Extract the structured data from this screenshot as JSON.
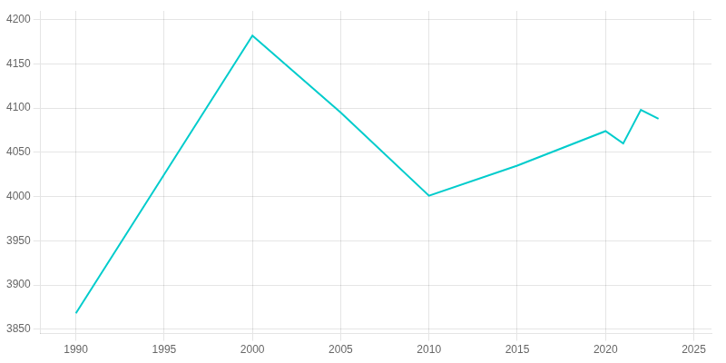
{
  "chart_data": {
    "type": "line",
    "x": [
      1990,
      2000,
      2005,
      2010,
      2015,
      2020,
      2021,
      2022,
      2023
    ],
    "values": [
      3868,
      4182,
      4095,
      4001,
      4035,
      4074,
      4060,
      4098,
      4088
    ],
    "color": "#00CCCC",
    "xlim": [
      1988,
      2026
    ],
    "ylim": [
      3845,
      4210
    ],
    "xticks": [
      1990,
      1995,
      2000,
      2005,
      2010,
      2015,
      2020,
      2025
    ],
    "yticks": [
      3850,
      3900,
      3950,
      4000,
      4050,
      4100,
      4150,
      4200
    ],
    "grid": true
  }
}
